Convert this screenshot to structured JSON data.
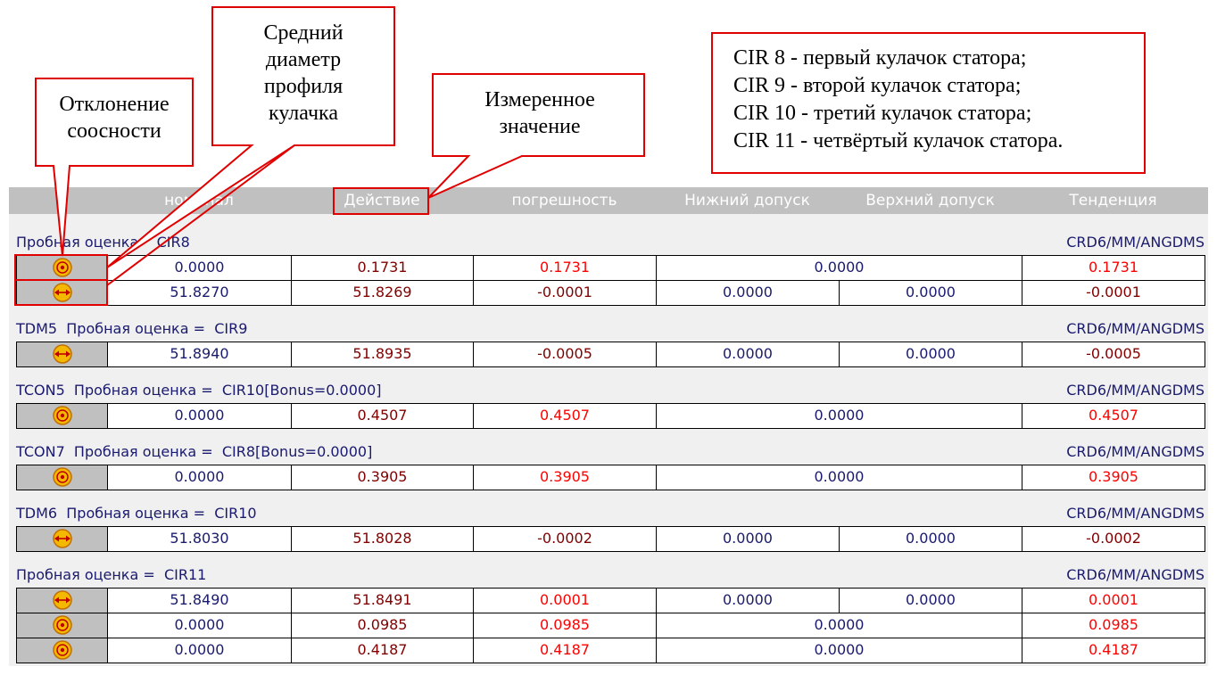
{
  "annotations": [
    "Отклонение соосности",
    "Средний диаметр профиля кулачка",
    "Измеренное значение"
  ],
  "legend": [
    "CIR 8 - первый кулачок статора;",
    "CIR 9 - второй кулачок статора;",
    "CIR 10 - третий кулачок статора;",
    "CIR 11 - четвёртый кулачок статора."
  ],
  "header": [
    "номинал",
    "Действие",
    "погрешность",
    "Нижний допуск",
    "Верхний допуск",
    "Тенденция"
  ],
  "groups": [
    {
      "title": "Пробная оценка    CIR8",
      "units": "CRD6/MM/ANGDMS",
      "rows": [
        {
          "icon": "target",
          "color": "#ff0000",
          "cells": [
            "0.0000",
            "0.1731",
            "0.1731",
            "0.0000",
            "0.1731"
          ]
        },
        {
          "icon": "arrows",
          "color": "#800000",
          "cells": [
            "51.8270",
            "51.8269",
            "-0.0001",
            "0.0000",
            "0.0000",
            "-0.0001"
          ]
        }
      ]
    },
    {
      "title": "TDM5  Пробная оценка =  CIR9",
      "units": "CRD6/MM/ANGDMS",
      "rows": [
        {
          "icon": "arrows",
          "color": "#800000",
          "cells": [
            "51.8940",
            "51.8935",
            "-0.0005",
            "0.0000",
            "0.0000",
            "-0.0005"
          ]
        }
      ]
    },
    {
      "title": "TCON5  Пробная оценка =  CIR10[Bonus=0.0000]",
      "units": "CRD6/MM/ANGDMS",
      "rows": [
        {
          "icon": "target",
          "color": "#ff0000",
          "cells": [
            "0.0000",
            "0.4507",
            "0.4507",
            "0.0000",
            "0.4507"
          ]
        }
      ]
    },
    {
      "title": "TCON7  Пробная оценка =  CIR8[Bonus=0.0000]",
      "units": "CRD6/MM/ANGDMS",
      "rows": [
        {
          "icon": "target",
          "color": "#ff0000",
          "cells": [
            "0.0000",
            "0.3905",
            "0.3905",
            "0.0000",
            "0.3905"
          ]
        }
      ]
    },
    {
      "title": "TDM6  Пробная оценка =  CIR10",
      "units": "CRD6/MM/ANGDMS",
      "rows": [
        {
          "icon": "arrows",
          "color": "#800000",
          "cells": [
            "51.8030",
            "51.8028",
            "-0.0002",
            "0.0000",
            "0.0000",
            "-0.0002"
          ]
        }
      ]
    },
    {
      "title": "Пробная оценка =  CIR11",
      "units": "CRD6/MM/ANGDMS",
      "rows": [
        {
          "icon": "arrows",
          "color": "#ff0000",
          "cells": [
            "51.8490",
            "51.8491",
            "0.0001",
            "0.0000",
            "0.0000",
            "0.0001"
          ]
        },
        {
          "icon": "target",
          "color": "#ff0000",
          "cells": [
            "0.0000",
            "0.0985",
            "0.0985",
            "0.0000",
            "0.0985"
          ]
        },
        {
          "icon": "target",
          "color": "#ff0000",
          "cells": [
            "0.0000",
            "0.4187",
            "0.4187",
            "0.0000",
            "0.4187"
          ]
        }
      ]
    }
  ]
}
